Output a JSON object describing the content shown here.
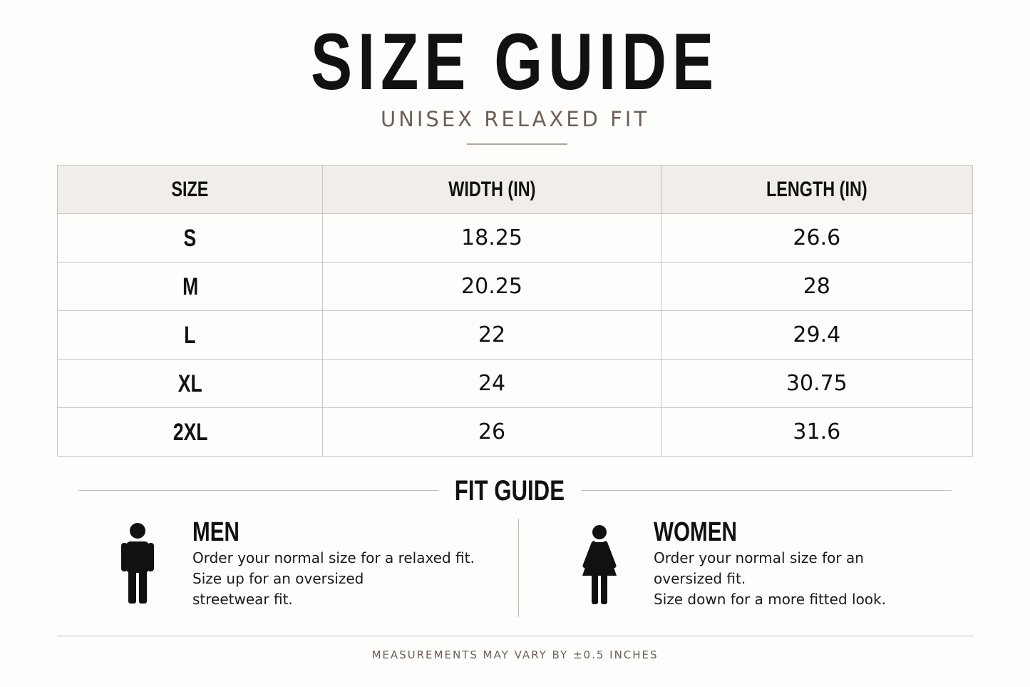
{
  "header": {
    "title": "SIZE GUIDE",
    "subtitle": "UNISEX RELAXED FIT"
  },
  "table": {
    "columns": [
      "SIZE",
      "WIDTH (IN)",
      "LENGTH (IN)"
    ],
    "rows": [
      [
        "S",
        "18.25",
        "26.6"
      ],
      [
        "M",
        "20.25",
        "28"
      ],
      [
        "L",
        "22",
        "29.4"
      ],
      [
        "XL",
        "24",
        "30.75"
      ],
      [
        "2XL",
        "26",
        "31.6"
      ]
    ]
  },
  "fit_guide": {
    "title": "FIT GUIDE",
    "sections": [
      {
        "title": "MEN",
        "lines": [
          "Order your normal size for a relaxed fit.",
          "Size up for an oversized",
          "streetwear fit."
        ]
      },
      {
        "title": "WOMEN",
        "lines": [
          "Order your normal size for an",
          "oversized fit.",
          "Size down for a more fitted look."
        ]
      }
    ]
  },
  "footer": "MEASUREMENTS MAY VARY BY ±0.5 INCHES"
}
